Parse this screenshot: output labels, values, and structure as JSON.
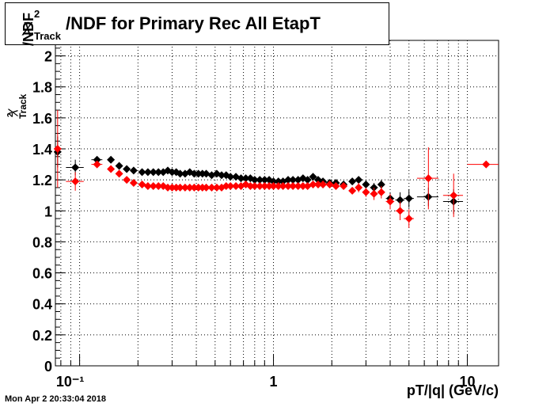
{
  "title": {
    "main": "/NDF for Primary Rec All EtapT",
    "chi": "χ",
    "sup": "2",
    "sub": "Track"
  },
  "timestamp": "Mon Apr  2 20:33:04 2018",
  "axes": {
    "xlabel": "pT/|q| (GeV/c)",
    "ylabel_main": "/NDF",
    "ylabel_chi": "χ",
    "ylabel_sub": "Track",
    "ylabel_sup": "2"
  },
  "chart_data": {
    "type": "scatter",
    "title": "χ²_Track/NDF for Primary Rec All EtapT",
    "xlabel": "pT/|q| (GeV/c)",
    "ylabel": "χ²_Track/NDF",
    "xscale": "log",
    "xlim": [
      0.075,
      14.5
    ],
    "ylim": [
      0,
      2.1
    ],
    "grid": true,
    "x_tick_labels": [
      "10⁻¹",
      "1",
      "10"
    ],
    "y_tick_labels": [
      "0",
      "0.2",
      "0.4",
      "0.6",
      "0.8",
      "1",
      "1.2",
      "1.4",
      "1.6",
      "1.8",
      "2"
    ],
    "series": [
      {
        "color": "#000000",
        "points": [
          {
            "x": 0.077,
            "y": 1.38,
            "xerr_lo": 0.0,
            "xerr_hi": 0.003,
            "yerr": 0.1
          },
          {
            "x": 0.095,
            "y": 1.28,
            "xerr_lo": 0.01,
            "xerr_hi": 0.01,
            "yerr": 0.05
          },
          {
            "x": 0.123,
            "y": 1.33,
            "xerr_lo": 0.008,
            "xerr_hi": 0.008,
            "yerr": 0.02
          },
          {
            "x": 0.145,
            "y": 1.33,
            "xerr_lo": 0.006,
            "xerr_hi": 0.006,
            "yerr": 0.01
          },
          {
            "x": 0.16,
            "y": 1.29
          },
          {
            "x": 0.175,
            "y": 1.27
          },
          {
            "x": 0.19,
            "y": 1.26
          },
          {
            "x": 0.21,
            "y": 1.25
          },
          {
            "x": 0.225,
            "y": 1.25
          },
          {
            "x": 0.24,
            "y": 1.25
          },
          {
            "x": 0.255,
            "y": 1.25
          },
          {
            "x": 0.27,
            "y": 1.25
          },
          {
            "x": 0.285,
            "y": 1.26
          },
          {
            "x": 0.3,
            "y": 1.25
          },
          {
            "x": 0.315,
            "y": 1.25
          },
          {
            "x": 0.33,
            "y": 1.24
          },
          {
            "x": 0.35,
            "y": 1.24
          },
          {
            "x": 0.37,
            "y": 1.25
          },
          {
            "x": 0.39,
            "y": 1.24
          },
          {
            "x": 0.41,
            "y": 1.24
          },
          {
            "x": 0.43,
            "y": 1.24
          },
          {
            "x": 0.45,
            "y": 1.24
          },
          {
            "x": 0.48,
            "y": 1.23
          },
          {
            "x": 0.51,
            "y": 1.24
          },
          {
            "x": 0.54,
            "y": 1.23
          },
          {
            "x": 0.57,
            "y": 1.23
          },
          {
            "x": 0.6,
            "y": 1.22
          },
          {
            "x": 0.64,
            "y": 1.22
          },
          {
            "x": 0.68,
            "y": 1.21
          },
          {
            "x": 0.72,
            "y": 1.21
          },
          {
            "x": 0.76,
            "y": 1.21
          },
          {
            "x": 0.8,
            "y": 1.2
          },
          {
            "x": 0.85,
            "y": 1.2
          },
          {
            "x": 0.9,
            "y": 1.2
          },
          {
            "x": 0.95,
            "y": 1.2
          },
          {
            "x": 1.0,
            "y": 1.19
          },
          {
            "x": 1.06,
            "y": 1.19
          },
          {
            "x": 1.12,
            "y": 1.19
          },
          {
            "x": 1.19,
            "y": 1.2
          },
          {
            "x": 1.26,
            "y": 1.2
          },
          {
            "x": 1.34,
            "y": 1.2
          },
          {
            "x": 1.42,
            "y": 1.21
          },
          {
            "x": 1.5,
            "y": 1.2
          },
          {
            "x": 1.6,
            "y": 1.22
          },
          {
            "x": 1.7,
            "y": 1.2
          },
          {
            "x": 1.8,
            "y": 1.19
          },
          {
            "x": 1.95,
            "y": 1.18
          },
          {
            "x": 2.1,
            "y": 1.18
          },
          {
            "x": 2.3,
            "y": 1.17
          },
          {
            "x": 2.55,
            "y": 1.19,
            "yerr": 0.02
          },
          {
            "x": 2.75,
            "y": 1.2,
            "yerr": 0.02
          },
          {
            "x": 3.0,
            "y": 1.17,
            "yerr": 0.03
          },
          {
            "x": 3.3,
            "y": 1.15,
            "xerr_lo": 0.15,
            "xerr_hi": 0.15,
            "yerr": 0.03
          },
          {
            "x": 3.6,
            "y": 1.17,
            "xerr_lo": 0.15,
            "xerr_hi": 0.15,
            "yerr": 0.03
          },
          {
            "x": 4.0,
            "y": 1.08,
            "xerr_lo": 0.2,
            "xerr_hi": 0.2,
            "yerr": 0.04
          },
          {
            "x": 4.5,
            "y": 1.07,
            "xerr_lo": 0.25,
            "xerr_hi": 0.25,
            "yerr": 0.05
          },
          {
            "x": 5.0,
            "y": 1.08,
            "xerr_lo": 0.3,
            "xerr_hi": 0.3,
            "yerr": 0.06
          },
          {
            "x": 6.3,
            "y": 1.09,
            "xerr_lo": 0.8,
            "xerr_hi": 0.8,
            "yerr": 0.06
          },
          {
            "x": 8.5,
            "y": 1.06,
            "xerr_lo": 1.0,
            "xerr_hi": 1.0,
            "yerr": 0.08
          }
        ]
      },
      {
        "color": "#ff0000",
        "points": [
          {
            "x": 0.077,
            "y": 1.4,
            "xerr_lo": 0.0,
            "xerr_hi": 0.003,
            "yerr": 0.25
          },
          {
            "x": 0.095,
            "y": 1.19,
            "xerr_lo": 0.01,
            "xerr_hi": 0.01,
            "yerr": 0.06
          },
          {
            "x": 0.123,
            "y": 1.3,
            "xerr_lo": 0.008,
            "xerr_hi": 0.008,
            "yerr": 0.02
          },
          {
            "x": 0.145,
            "y": 1.27,
            "yerr": 0.01
          },
          {
            "x": 0.16,
            "y": 1.24
          },
          {
            "x": 0.175,
            "y": 1.2
          },
          {
            "x": 0.19,
            "y": 1.18
          },
          {
            "x": 0.21,
            "y": 1.17
          },
          {
            "x": 0.225,
            "y": 1.16
          },
          {
            "x": 0.24,
            "y": 1.16
          },
          {
            "x": 0.255,
            "y": 1.16
          },
          {
            "x": 0.27,
            "y": 1.16
          },
          {
            "x": 0.285,
            "y": 1.15
          },
          {
            "x": 0.3,
            "y": 1.15
          },
          {
            "x": 0.315,
            "y": 1.15
          },
          {
            "x": 0.33,
            "y": 1.15
          },
          {
            "x": 0.35,
            "y": 1.15
          },
          {
            "x": 0.37,
            "y": 1.15
          },
          {
            "x": 0.39,
            "y": 1.15
          },
          {
            "x": 0.41,
            "y": 1.15
          },
          {
            "x": 0.43,
            "y": 1.15
          },
          {
            "x": 0.45,
            "y": 1.15
          },
          {
            "x": 0.48,
            "y": 1.15
          },
          {
            "x": 0.51,
            "y": 1.15
          },
          {
            "x": 0.54,
            "y": 1.15
          },
          {
            "x": 0.57,
            "y": 1.16
          },
          {
            "x": 0.6,
            "y": 1.16
          },
          {
            "x": 0.64,
            "y": 1.16
          },
          {
            "x": 0.68,
            "y": 1.16
          },
          {
            "x": 0.72,
            "y": 1.17
          },
          {
            "x": 0.76,
            "y": 1.16
          },
          {
            "x": 0.8,
            "y": 1.16
          },
          {
            "x": 0.85,
            "y": 1.16
          },
          {
            "x": 0.9,
            "y": 1.16
          },
          {
            "x": 0.95,
            "y": 1.16
          },
          {
            "x": 1.0,
            "y": 1.16
          },
          {
            "x": 1.06,
            "y": 1.16
          },
          {
            "x": 1.12,
            "y": 1.16
          },
          {
            "x": 1.19,
            "y": 1.16
          },
          {
            "x": 1.26,
            "y": 1.16
          },
          {
            "x": 1.34,
            "y": 1.16
          },
          {
            "x": 1.42,
            "y": 1.16
          },
          {
            "x": 1.5,
            "y": 1.16
          },
          {
            "x": 1.6,
            "y": 1.17
          },
          {
            "x": 1.7,
            "y": 1.17
          },
          {
            "x": 1.8,
            "y": 1.17
          },
          {
            "x": 1.95,
            "y": 1.17
          },
          {
            "x": 2.1,
            "y": 1.16
          },
          {
            "x": 2.3,
            "y": 1.16
          },
          {
            "x": 2.55,
            "y": 1.13,
            "yerr": 0.02
          },
          {
            "x": 2.75,
            "y": 1.15,
            "yerr": 0.03
          },
          {
            "x": 3.0,
            "y": 1.12,
            "yerr": 0.03
          },
          {
            "x": 3.3,
            "y": 1.11,
            "xerr_lo": 0.15,
            "xerr_hi": 0.15,
            "yerr": 0.04
          },
          {
            "x": 3.6,
            "y": 1.12,
            "xerr_lo": 0.15,
            "xerr_hi": 0.15,
            "yerr": 0.04
          },
          {
            "x": 4.0,
            "y": 1.06,
            "xerr_lo": 0.2,
            "xerr_hi": 0.2,
            "yerr": 0.05
          },
          {
            "x": 4.5,
            "y": 1.0,
            "xerr_lo": 0.25,
            "xerr_hi": 0.25,
            "yerr": 0.06
          },
          {
            "x": 5.0,
            "y": 0.95,
            "xerr_lo": 0.3,
            "xerr_hi": 0.3,
            "yerr": 0.06
          },
          {
            "x": 6.3,
            "y": 1.21,
            "xerr_lo": 0.8,
            "xerr_hi": 0.8,
            "yerr": 0.2
          },
          {
            "x": 8.5,
            "y": 1.1,
            "xerr_lo": 1.0,
            "xerr_hi": 1.0,
            "yerr": 0.14
          },
          {
            "x": 12.5,
            "y": 1.3,
            "xerr_lo": 2.5,
            "xerr_hi": 2.0,
            "yerr": 0.0
          }
        ]
      }
    ]
  }
}
